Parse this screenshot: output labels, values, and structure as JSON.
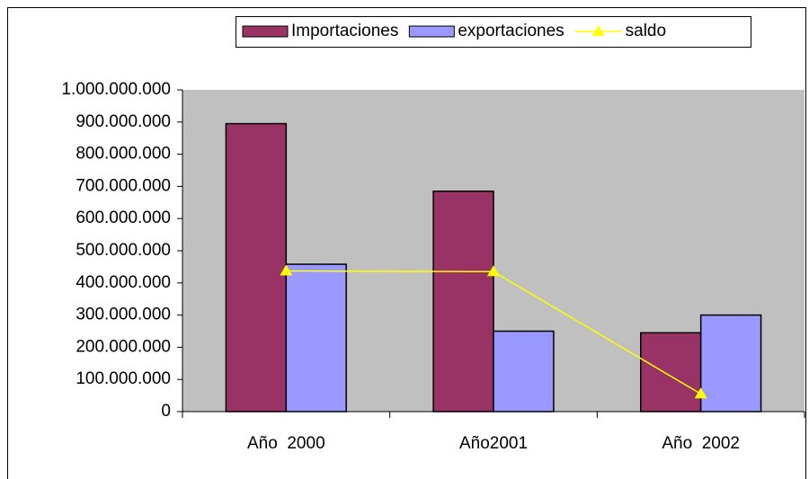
{
  "chart_data": {
    "type": "bar_line",
    "categories": [
      "Año  2000",
      "Año2001",
      "Año  2002"
    ],
    "series": [
      {
        "name": "Importaciones",
        "type": "bar",
        "color": "#993366",
        "values": [
          895000000,
          685000000,
          245000000
        ]
      },
      {
        "name": "exportaciones",
        "type": "bar",
        "color": "#9999ff",
        "values": [
          458000000,
          250000000,
          300000000
        ]
      },
      {
        "name": "saldo",
        "type": "line",
        "color": "#ffff00",
        "values": [
          437000000,
          435000000,
          55000000
        ]
      }
    ],
    "ylim": [
      0,
      1000000000
    ],
    "yticks": [
      0,
      {
        "value": 100000000,
        "label": "100.000.000"
      },
      {
        "value": 200000000,
        "label": "200.000.000"
      },
      {
        "value": 300000000,
        "label": "300.000.000"
      },
      {
        "value": 400000000,
        "label": "400.000.000"
      },
      {
        "value": 500000000,
        "label": "500.000.000"
      },
      {
        "value": 600000000,
        "label": "600.000.000"
      },
      {
        "value": 700000000,
        "label": "700.000.000"
      },
      {
        "value": 800000000,
        "label": "800.000.000"
      },
      {
        "value": 900000000,
        "label": "900.000.000"
      },
      {
        "value": 1000000000,
        "label": "1.000.000.000"
      }
    ],
    "plot_background": "#c0c0c0",
    "legend": "top"
  }
}
